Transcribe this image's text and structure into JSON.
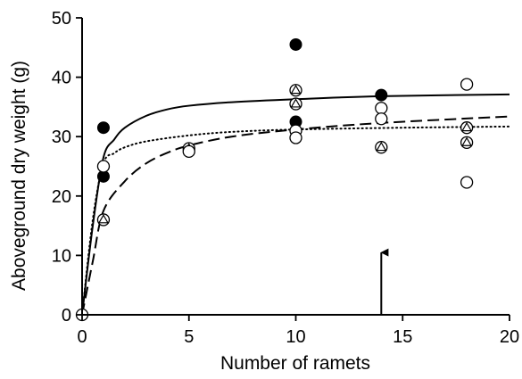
{
  "chart_data": {
    "type": "scatter",
    "xlabel": "Number of ramets",
    "ylabel": "Aboveground dry weight (g)",
    "xlim": [
      0,
      20
    ],
    "ylim": [
      0,
      50
    ],
    "xticks": [
      0,
      5,
      10,
      15,
      20
    ],
    "yticks": [
      0,
      10,
      20,
      30,
      40,
      50
    ],
    "xtick_labels": [
      "0",
      "5",
      "10",
      "15",
      "20"
    ],
    "ytick_labels": [
      "0",
      "10",
      "20",
      "30",
      "40",
      "50"
    ],
    "grid": false,
    "legend": "none",
    "series": [
      {
        "marker": "filled-circle",
        "color": "#000000",
        "points": [
          [
            1,
            31.5
          ],
          [
            1,
            23.3
          ],
          [
            10,
            45.5
          ],
          [
            10,
            32.5
          ],
          [
            14,
            37.0
          ]
        ]
      },
      {
        "marker": "open-triangle",
        "color": "#000000",
        "points": [
          [
            1,
            16.0
          ],
          [
            5,
            28.0
          ],
          [
            10,
            37.8
          ],
          [
            10,
            35.5
          ],
          [
            14,
            28.2
          ],
          [
            18,
            31.5
          ],
          [
            18,
            29.0
          ]
        ]
      },
      {
        "marker": "open-circle",
        "color": "#000000",
        "points": [
          [
            0,
            0
          ],
          [
            1,
            25.0
          ],
          [
            5,
            27.5
          ],
          [
            10,
            31.0
          ],
          [
            10,
            29.8
          ],
          [
            14,
            34.8
          ],
          [
            14,
            33.0
          ],
          [
            18,
            38.8
          ],
          [
            18,
            22.3
          ]
        ]
      }
    ],
    "fitted_curves": [
      {
        "style": "solid",
        "points": [
          [
            0,
            0
          ],
          [
            0.5,
            15
          ],
          [
            1,
            26.5
          ],
          [
            1.5,
            29.5
          ],
          [
            2,
            31.5
          ],
          [
            3,
            33.5
          ],
          [
            4,
            34.6
          ],
          [
            5,
            35.2
          ],
          [
            7,
            35.8
          ],
          [
            10,
            36.3
          ],
          [
            14,
            36.8
          ],
          [
            20,
            37.1
          ]
        ]
      },
      {
        "style": "dotted",
        "points": [
          [
            0,
            0
          ],
          [
            0.5,
            16
          ],
          [
            1,
            25.5
          ],
          [
            1.5,
            27.2
          ],
          [
            2,
            28.2
          ],
          [
            3,
            29.2
          ],
          [
            5,
            30.2
          ],
          [
            7,
            30.8
          ],
          [
            10,
            31.2
          ],
          [
            15,
            31.5
          ],
          [
            20,
            31.7
          ]
        ]
      },
      {
        "style": "dashed",
        "points": [
          [
            0,
            0
          ],
          [
            0.5,
            9
          ],
          [
            1,
            17.5
          ],
          [
            2,
            22.5
          ],
          [
            3,
            25.5
          ],
          [
            4,
            27.3
          ],
          [
            5,
            28.5
          ],
          [
            7,
            30.0
          ],
          [
            10,
            31.2
          ],
          [
            14,
            32.3
          ],
          [
            20,
            33.4
          ]
        ]
      }
    ],
    "annotations": [
      {
        "type": "arrow",
        "direction": "up",
        "x": 14,
        "y_from": 0,
        "y_to": 10.5
      }
    ]
  }
}
